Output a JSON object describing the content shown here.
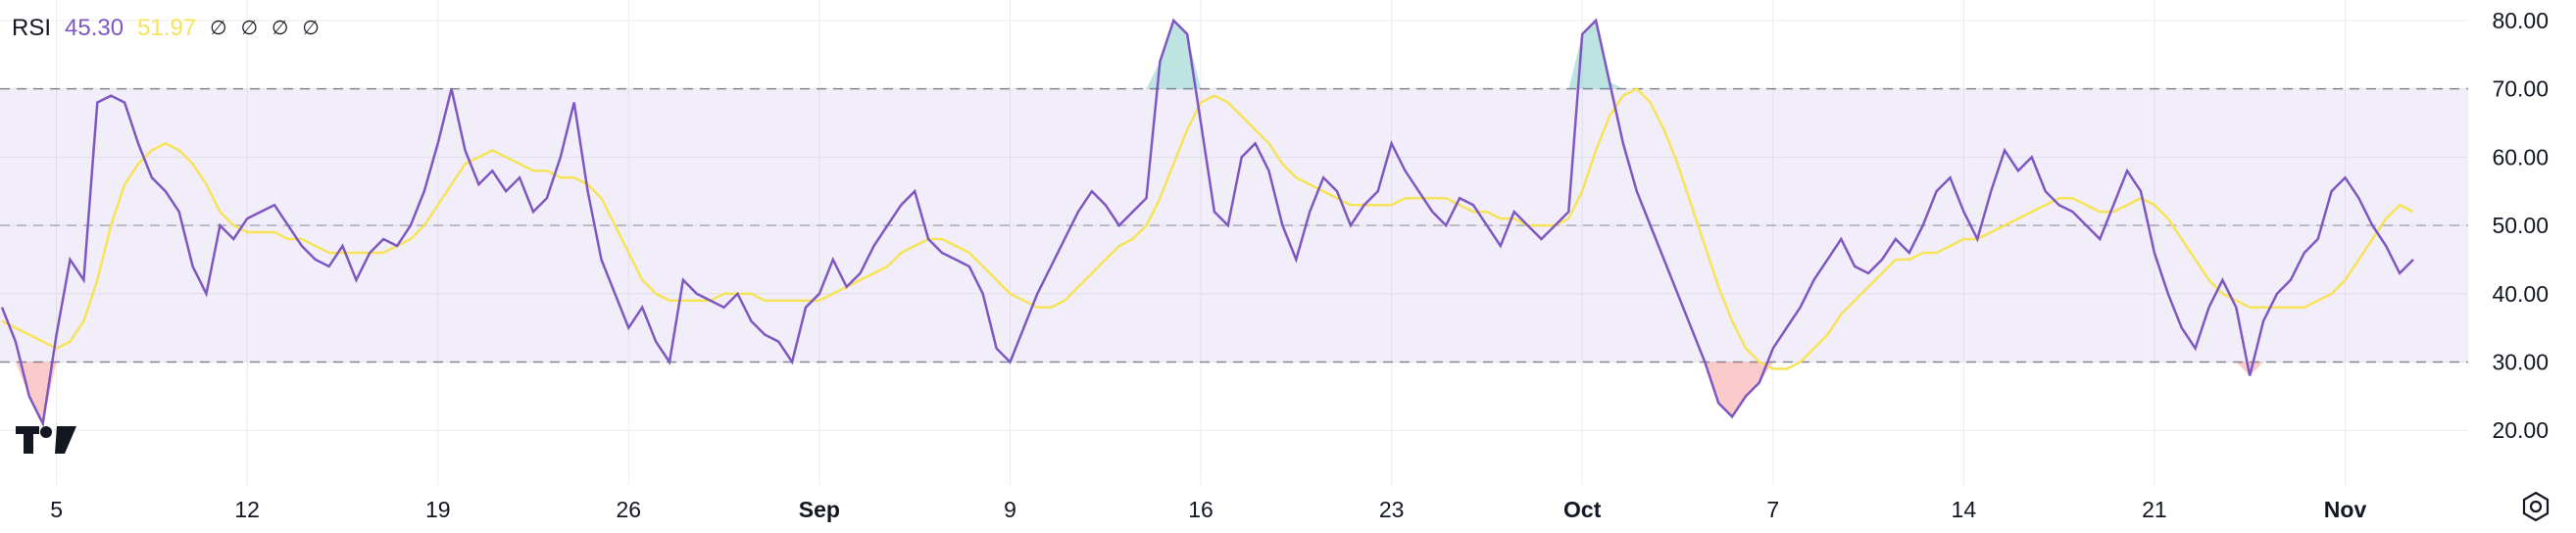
{
  "legend": {
    "name": "RSI",
    "rsi_value": "45.30",
    "ma_value": "51.97",
    "na_symbols": [
      "∅",
      "∅",
      "∅",
      "∅"
    ]
  },
  "colors": {
    "rsi_line": "#7e57c2",
    "ma_line": "#f6e35a",
    "band_fill": "#7e57c2",
    "overbought_fill": "#26a69a",
    "oversold_fill": "#ef5350",
    "grid": "#ececf0",
    "band_line": "#787b86"
  },
  "icons": {
    "settings": "gear-icon",
    "logo": "tradingview-logo-icon"
  },
  "chart_data": {
    "type": "line",
    "ylim": [
      12,
      83
    ],
    "y_ticks": [
      20,
      30,
      40,
      50,
      60,
      70,
      80
    ],
    "y_tick_labels": [
      "20.00",
      "30.00",
      "40.00",
      "50.00",
      "60.00",
      "70.00",
      "80.00"
    ],
    "bands": {
      "upper": 70,
      "middle": 50,
      "lower": 30
    },
    "x_ticks": [
      {
        "label": "5",
        "i": 4,
        "bold": false
      },
      {
        "label": "12",
        "i": 18,
        "bold": false
      },
      {
        "label": "19",
        "i": 32,
        "bold": false
      },
      {
        "label": "26",
        "i": 46,
        "bold": false
      },
      {
        "label": "Sep",
        "i": 60,
        "bold": true
      },
      {
        "label": "9",
        "i": 74,
        "bold": false
      },
      {
        "label": "16",
        "i": 88,
        "bold": false
      },
      {
        "label": "23",
        "i": 102,
        "bold": false
      },
      {
        "label": "Oct",
        "i": 116,
        "bold": true
      },
      {
        "label": "7",
        "i": 130,
        "bold": false
      },
      {
        "label": "14",
        "i": 144,
        "bold": false
      },
      {
        "label": "21",
        "i": 158,
        "bold": false
      },
      {
        "label": "Nov",
        "i": 172,
        "bold": true
      }
    ],
    "x_count": 178,
    "series": [
      {
        "name": "RSI",
        "values": [
          38,
          33,
          25,
          21,
          34,
          45,
          42,
          68,
          69,
          68,
          62,
          57,
          55,
          52,
          44,
          40,
          50,
          48,
          51,
          52,
          53,
          50,
          47,
          45,
          44,
          47,
          42,
          46,
          48,
          47,
          50,
          55,
          62,
          70,
          61,
          56,
          58,
          55,
          57,
          52,
          54,
          60,
          68,
          55,
          45,
          40,
          35,
          38,
          33,
          30,
          42,
          40,
          39,
          38,
          40,
          36,
          34,
          33,
          30,
          38,
          40,
          45,
          41,
          43,
          47,
          50,
          53,
          55,
          48,
          46,
          45,
          44,
          40,
          32,
          30,
          35,
          40,
          44,
          48,
          52,
          55,
          53,
          50,
          52,
          54,
          74,
          80,
          78,
          65,
          52,
          50,
          60,
          62,
          58,
          50,
          45,
          52,
          57,
          55,
          50,
          53,
          55,
          62,
          58,
          55,
          52,
          50,
          54,
          53,
          50,
          47,
          52,
          50,
          48,
          50,
          52,
          78,
          80,
          71,
          62,
          55,
          50,
          45,
          40,
          35,
          30,
          24,
          22,
          25,
          27,
          32,
          35,
          38,
          42,
          45,
          48,
          44,
          43,
          45,
          48,
          46,
          50,
          55,
          57,
          52,
          48,
          55,
          61,
          58,
          60,
          55,
          53,
          52,
          50,
          48,
          53,
          58,
          55,
          46,
          40,
          35,
          32,
          38,
          42,
          38,
          28,
          36,
          40,
          42,
          46,
          48,
          55,
          57,
          54,
          50,
          47,
          43,
          45
        ]
      },
      {
        "name": "MA",
        "values": [
          36,
          35,
          34,
          33,
          32,
          33,
          36,
          42,
          50,
          56,
          59,
          61,
          62,
          61,
          59,
          56,
          52,
          50,
          49,
          49,
          49,
          48,
          48,
          47,
          46,
          46,
          46,
          46,
          46,
          47,
          48,
          50,
          53,
          56,
          59,
          60,
          61,
          60,
          59,
          58,
          58,
          57,
          57,
          56,
          54,
          50,
          46,
          42,
          40,
          39,
          39,
          39,
          39,
          40,
          40,
          40,
          39,
          39,
          39,
          39,
          39,
          40,
          41,
          42,
          43,
          44,
          46,
          47,
          48,
          48,
          47,
          46,
          44,
          42,
          40,
          39,
          38,
          38,
          39,
          41,
          43,
          45,
          47,
          48,
          50,
          54,
          59,
          64,
          68,
          69,
          68,
          66,
          64,
          62,
          59,
          57,
          56,
          55,
          54,
          53,
          53,
          53,
          53,
          54,
          54,
          54,
          54,
          53,
          52,
          52,
          51,
          51,
          50,
          50,
          50,
          51,
          55,
          61,
          66,
          69,
          70,
          68,
          64,
          59,
          53,
          47,
          41,
          36,
          32,
          30,
          29,
          29,
          30,
          32,
          34,
          37,
          39,
          41,
          43,
          45,
          45,
          46,
          46,
          47,
          48,
          48,
          49,
          50,
          51,
          52,
          53,
          54,
          54,
          53,
          52,
          52,
          53,
          54,
          53,
          51,
          48,
          45,
          42,
          40,
          39,
          38,
          38,
          38,
          38,
          38,
          39,
          40,
          42,
          45,
          48,
          51,
          53,
          52
        ]
      }
    ]
  }
}
